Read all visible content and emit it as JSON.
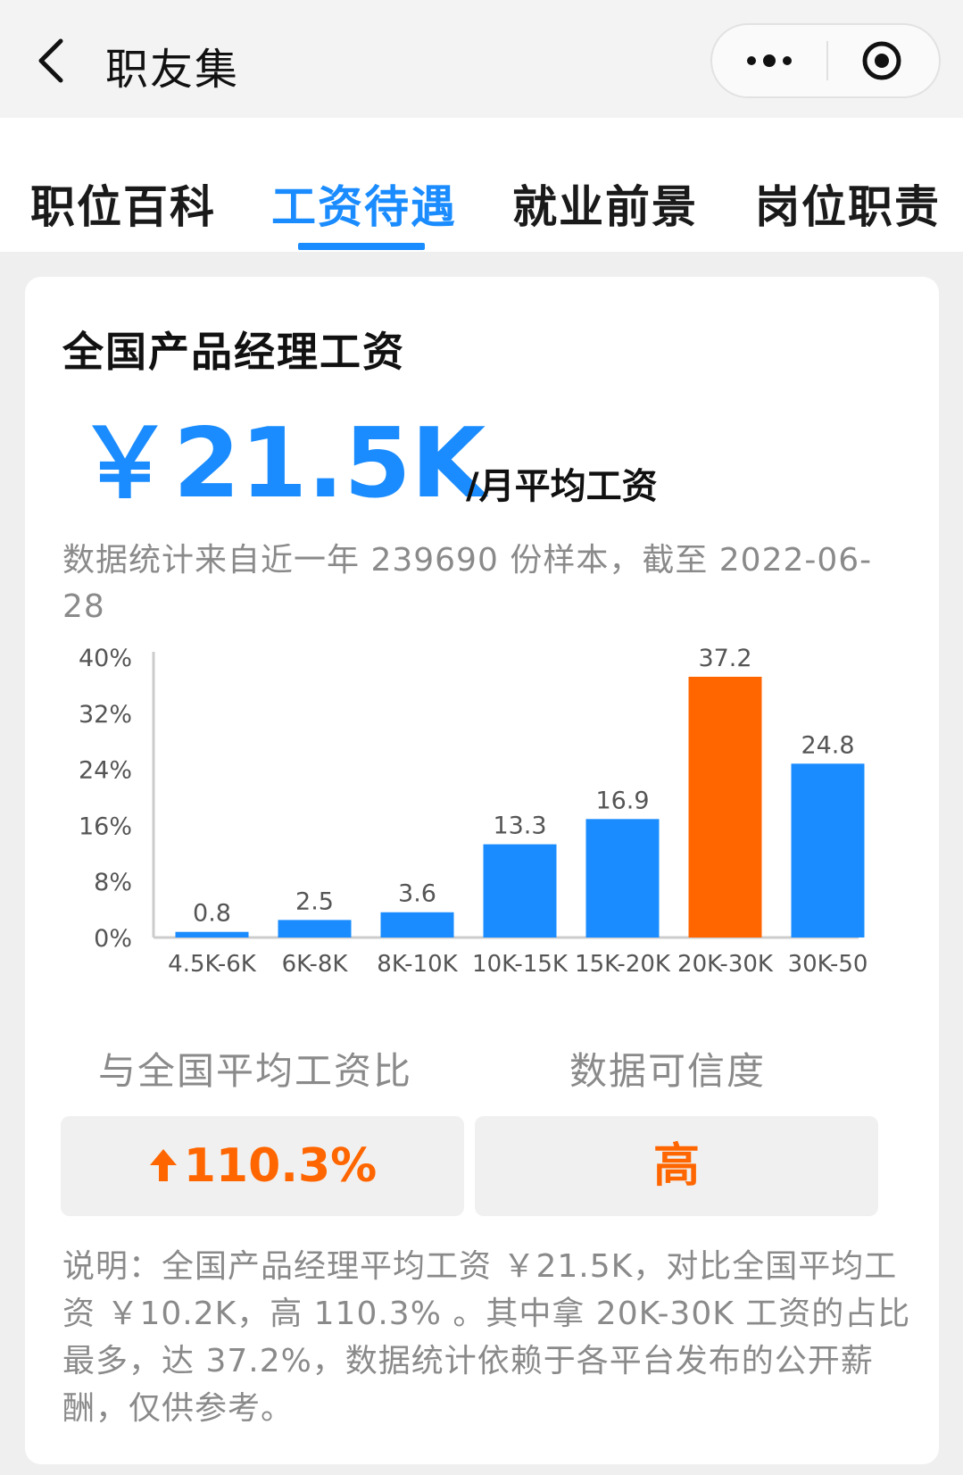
{
  "navbar": {
    "title": "职友集",
    "back_icon": "chevron-left-icon",
    "more_icon": "more-dots-icon",
    "close_icon": "target-close-icon"
  },
  "tabs": [
    {
      "label": "职位百科",
      "active": false
    },
    {
      "label": "工资待遇",
      "active": true
    },
    {
      "label": "就业前景",
      "active": false
    },
    {
      "label": "岗位职责",
      "active": false
    }
  ],
  "card": {
    "title": "全国产品经理工资",
    "salary_value": "￥21.5K",
    "salary_unit": "/月平均工资",
    "sample_note": "数据统计来自近一年 239690 份样本，截至 2022-06-28"
  },
  "chart_data": {
    "type": "bar",
    "categories": [
      "4.5K-6K",
      "6K-8K",
      "8K-10K",
      "10K-15K",
      "15K-20K",
      "20K-30K",
      "30K-50"
    ],
    "values": [
      0.8,
      2.5,
      3.6,
      13.3,
      16.9,
      37.2,
      24.8
    ],
    "value_labels": [
      "0.8",
      "2.5",
      "3.6",
      "13.3",
      "16.9",
      "37.2",
      "24.8"
    ],
    "y_ticks": [
      "0%",
      "8%",
      "16%",
      "24%",
      "32%",
      "40%"
    ],
    "ylim": [
      0,
      40
    ],
    "grid": false,
    "highlight_index": 5,
    "colors": {
      "bar": "#1a8cff",
      "highlight": "#ff6600",
      "axis": "#cccccc",
      "label": "#555555"
    }
  },
  "metrics": {
    "compare_label": "与全国平均工资比",
    "compare_value": "110.3%",
    "compare_icon": "arrow-up-icon",
    "reliability_label": "数据可信度",
    "reliability_value": "高"
  },
  "explanation": "说明：全国产品经理平均工资 ￥21.5K，对比全国平均工资 ￥10.2K，高 110.3% 。其中拿 20K-30K 工资的占比最多，达 37.2%，数据统计依赖于各平台发布的公开薪酬，仅供参考。",
  "colors": {
    "accent": "#1a8cff",
    "highlight": "#ff6600",
    "muted": "#8a8a8a"
  }
}
